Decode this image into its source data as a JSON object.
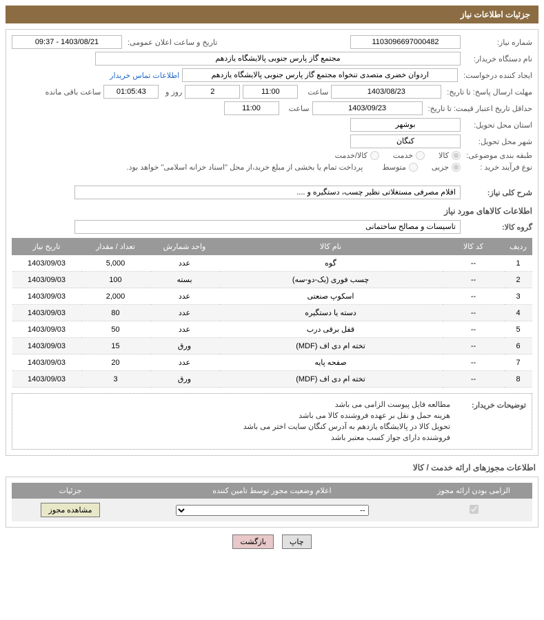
{
  "header": {
    "title": "جزئیات اطلاعات نیاز"
  },
  "info": {
    "need_number_lbl": "شماره نیاز:",
    "need_number": "1103096697000482",
    "announce_date_lbl": "تاریخ و ساعت اعلان عمومی:",
    "announce_date": "1403/08/21 - 09:37",
    "buyer_org_lbl": "نام دستگاه خریدار:",
    "buyer_org": "مجتمع گاز پارس جنوبی  پالایشگاه یازدهم",
    "requester_lbl": "ایجاد کننده درخواست:",
    "requester": "اردوان خضری متصدی تنخواه مجتمع گاز پارس جنوبی  پالایشگاه یازدهم",
    "contact_link": "اطلاعات تماس خریدار",
    "deadline_lbl": "مهلت ارسال پاسخ: تا تاریخ:",
    "deadline_date": "1403/08/23",
    "time_lbl": "ساعت",
    "deadline_time": "11:00",
    "days": "2",
    "days_lbl": "روز و",
    "remaining": "01:05:43",
    "remaining_lbl": "ساعت باقی مانده",
    "validity_lbl": "حداقل تاریخ اعتبار قیمت: تا تاریخ:",
    "validity_date": "1403/09/23",
    "validity_time": "11:00",
    "province_lbl": "استان محل تحویل:",
    "province": "بوشهر",
    "city_lbl": "شهر محل تحویل:",
    "city": "کنگان",
    "category_lbl": "طبقه بندی موضوعی:",
    "cat1": "کالا",
    "cat2": "خدمت",
    "cat3": "کالا/خدمت",
    "process_lbl": "نوع فرآیند خرید :",
    "proc1": "جزیی",
    "proc2": "متوسط",
    "process_note": "پرداخت تمام یا بخشی از مبلغ خرید،از محل \"اسناد خزانه اسلامی\" خواهد بود.",
    "overall_lbl": "شرح کلی نیاز:",
    "overall": "اقلام مصرفی مستغلاتی نظیر چسب، دستگیره و ...."
  },
  "items_section": {
    "title": "اطلاعات کالاهای مورد نیاز",
    "group_lbl": "گروه کالا:",
    "group": "تاسیسات و مصالح ساختمانی",
    "headers": {
      "row": "ردیف",
      "code": "کد کالا",
      "name": "نام کالا",
      "unit": "واحد شمارش",
      "qty": "تعداد / مقدار",
      "date": "تاریخ نیاز"
    },
    "rows": [
      {
        "r": "1",
        "code": "--",
        "name": "گوه",
        "unit": "عدد",
        "qty": "5,000",
        "date": "1403/09/03"
      },
      {
        "r": "2",
        "code": "--",
        "name": "چسب فوری (یک-دو-سه)",
        "unit": "بسته",
        "qty": "100",
        "date": "1403/09/03"
      },
      {
        "r": "3",
        "code": "--",
        "name": "اسکوپ صنعتی",
        "unit": "عدد",
        "qty": "2,000",
        "date": "1403/09/03"
      },
      {
        "r": "4",
        "code": "--",
        "name": "دسته یا دستگیره",
        "unit": "عدد",
        "qty": "80",
        "date": "1403/09/03"
      },
      {
        "r": "5",
        "code": "--",
        "name": "قفل برقی درب",
        "unit": "عدد",
        "qty": "50",
        "date": "1403/09/03"
      },
      {
        "r": "6",
        "code": "--",
        "name": "تخته ام دی اف (MDF)",
        "unit": "ورق",
        "qty": "15",
        "date": "1403/09/03"
      },
      {
        "r": "7",
        "code": "--",
        "name": "صفحه پایه",
        "unit": "عدد",
        "qty": "20",
        "date": "1403/09/03"
      },
      {
        "r": "8",
        "code": "--",
        "name": "تخته ام دی اف (MDF)",
        "unit": "ورق",
        "qty": "3",
        "date": "1403/09/03"
      }
    ]
  },
  "buyer_notes": {
    "label": "توضیحات خریدار:",
    "line1": "مطالعه فایل پیوست الزامی می باشد",
    "line2": "هزینه حمل و نقل بر عهده فروشنده کالا می باشد",
    "line3": "تحویل کالا در پالایشگاه یازدهم به آدرس کنگان سایت اختر می باشد",
    "line4": "فروشنده دارای جواز کسب معتبر باشد"
  },
  "license": {
    "title": "اطلاعات مجوزهای ارائه خدمت / کالا",
    "headers": {
      "mandatory": "الزامی بودن ارائه مجوز",
      "status": "اعلام وضعیت مجوز توسط تامین کننده",
      "details": "جزئیات"
    },
    "status_selected": "--",
    "view_btn": "مشاهده مجوز"
  },
  "footer": {
    "print": "چاپ",
    "back": "بازگشت"
  }
}
